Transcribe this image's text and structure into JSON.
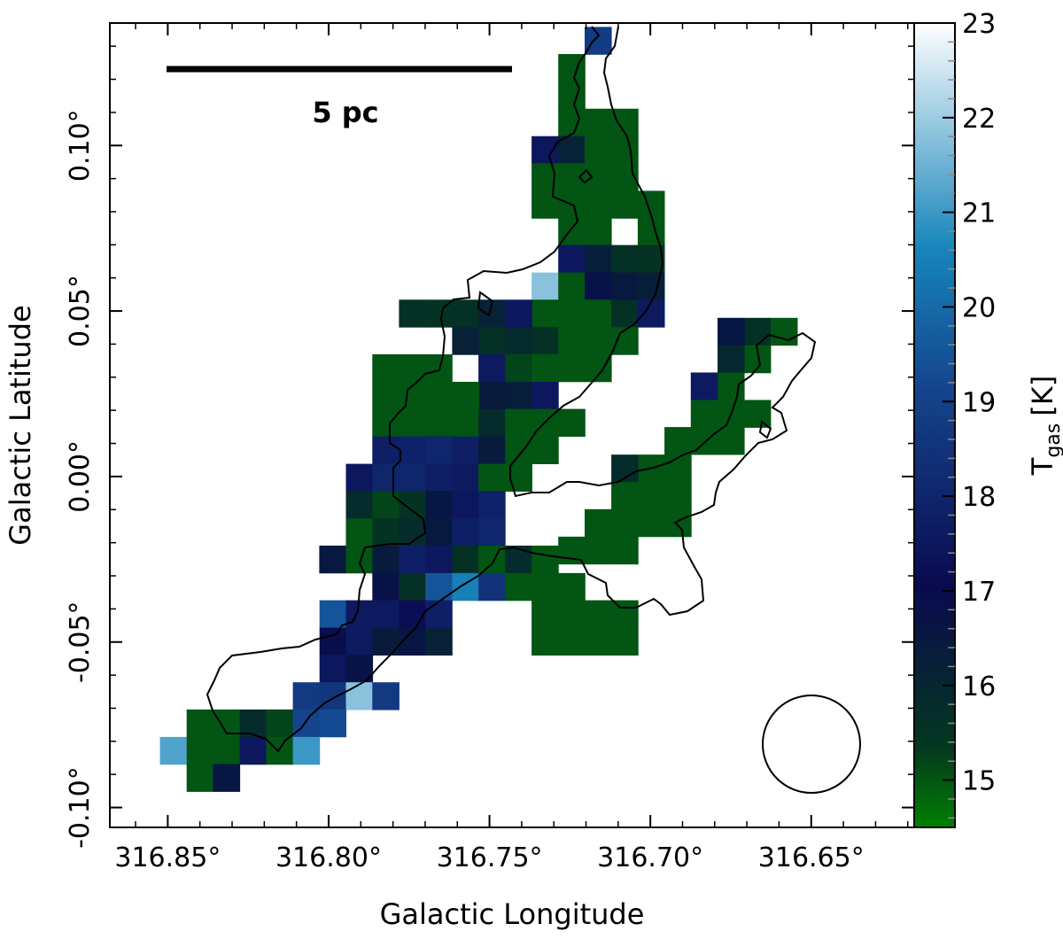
{
  "chart_data": {
    "type": "heatmap",
    "title": "",
    "xlabel": "Galactic Longitude",
    "ylabel": "Galactic Latitude",
    "xlim": [
      316.868,
      316.618
    ],
    "ylim": [
      -0.106,
      0.137
    ],
    "x_ticks": [
      {
        "value": 316.85,
        "label": "316.85°"
      },
      {
        "value": 316.8,
        "label": "316.80°"
      },
      {
        "value": 316.75,
        "label": "316.75°"
      },
      {
        "value": 316.7,
        "label": "316.70°"
      },
      {
        "value": 316.65,
        "label": "316.65°"
      }
    ],
    "y_ticks": [
      {
        "value": 0.1,
        "label": "0.10°"
      },
      {
        "value": 0.05,
        "label": "0.05°"
      },
      {
        "value": 0.0,
        "label": "0.00°"
      },
      {
        "value": -0.05,
        "label": "-0.05°"
      },
      {
        "value": -0.1,
        "label": "-0.10°"
      }
    ],
    "grid": false,
    "pixel_size_deg": 0.00825,
    "cmap_colors": [
      "#008000",
      "#04371f",
      "#0a0a50",
      "#15468e",
      "#1685bb",
      "#ffffff"
    ],
    "cells": [
      [
        316.7163,
        0.1317,
        18.8
      ],
      [
        316.7245,
        0.1235,
        15
      ],
      [
        316.7245,
        0.1152,
        15
      ],
      [
        316.7245,
        0.107,
        15
      ],
      [
        316.7163,
        0.107,
        15
      ],
      [
        316.708,
        0.107,
        15
      ],
      [
        316.7328,
        0.0987,
        17.5
      ],
      [
        316.7245,
        0.0987,
        16.2
      ],
      [
        316.708,
        0.0987,
        15
      ],
      [
        316.7163,
        0.0987,
        15
      ],
      [
        316.7328,
        0.0905,
        15
      ],
      [
        316.7245,
        0.0905,
        15
      ],
      [
        316.7163,
        0.0905,
        15
      ],
      [
        316.708,
        0.0905,
        15
      ],
      [
        316.7328,
        0.0822,
        15
      ],
      [
        316.7245,
        0.0822,
        15
      ],
      [
        316.7163,
        0.0822,
        15
      ],
      [
        316.708,
        0.0822,
        15
      ],
      [
        316.6998,
        0.0822,
        15
      ],
      [
        316.7245,
        0.074,
        15
      ],
      [
        316.7163,
        0.074,
        15
      ],
      [
        316.6998,
        0.074,
        15
      ],
      [
        316.7245,
        0.0658,
        17.5
      ],
      [
        316.7163,
        0.0658,
        16.3
      ],
      [
        316.708,
        0.0658,
        15.6
      ],
      [
        316.6998,
        0.0658,
        15.5
      ],
      [
        316.7328,
        0.0575,
        21.8
      ],
      [
        316.7245,
        0.0575,
        15
      ],
      [
        316.7163,
        0.0575,
        16.8
      ],
      [
        316.708,
        0.0575,
        16.5
      ],
      [
        316.6998,
        0.0575,
        16.3
      ],
      [
        316.7328,
        0.0493,
        15
      ],
      [
        316.7245,
        0.0493,
        15
      ],
      [
        316.7163,
        0.0493,
        15
      ],
      [
        316.708,
        0.0493,
        15.6
      ],
      [
        316.6998,
        0.0493,
        17.6
      ],
      [
        316.774,
        0.0493,
        15.6
      ],
      [
        316.7658,
        0.0493,
        15.5
      ],
      [
        316.7575,
        0.0493,
        15.6
      ],
      [
        316.7493,
        0.0493,
        16.2
      ],
      [
        316.741,
        0.0493,
        17.5
      ],
      [
        316.741,
        0.041,
        15.8
      ],
      [
        316.7493,
        0.041,
        15.6
      ],
      [
        316.7575,
        0.041,
        16.2
      ],
      [
        316.7328,
        0.041,
        15.6
      ],
      [
        316.7245,
        0.041,
        15
      ],
      [
        316.7163,
        0.041,
        15
      ],
      [
        316.708,
        0.041,
        15
      ],
      [
        316.7493,
        0.0328,
        17.6
      ],
      [
        316.741,
        0.0328,
        15.2
      ],
      [
        316.7328,
        0.0328,
        15
      ],
      [
        316.7245,
        0.0328,
        15
      ],
      [
        316.7163,
        0.0328,
        15
      ],
      [
        316.7823,
        0.0328,
        15
      ],
      [
        316.774,
        0.0328,
        15
      ],
      [
        316.7658,
        0.0328,
        15
      ],
      [
        316.7493,
        0.0245,
        16.4
      ],
      [
        316.741,
        0.0245,
        16.3
      ],
      [
        316.7328,
        0.0245,
        17.5
      ],
      [
        316.7823,
        0.0245,
        15
      ],
      [
        316.774,
        0.0245,
        15
      ],
      [
        316.7658,
        0.0245,
        15
      ],
      [
        316.7575,
        0.0245,
        15
      ],
      [
        316.7823,
        0.0163,
        15
      ],
      [
        316.774,
        0.0163,
        15
      ],
      [
        316.7658,
        0.0163,
        15
      ],
      [
        316.7575,
        0.0163,
        15
      ],
      [
        316.7493,
        0.0163,
        15.8
      ],
      [
        316.741,
        0.0163,
        15
      ],
      [
        316.7328,
        0.0163,
        15
      ],
      [
        316.7245,
        0.0163,
        15
      ],
      [
        316.7658,
        0.008,
        18
      ],
      [
        316.7575,
        0.008,
        17.8
      ],
      [
        316.7493,
        0.008,
        16.4
      ],
      [
        316.741,
        0.008,
        15
      ],
      [
        316.7328,
        0.008,
        15
      ],
      [
        316.774,
        0.008,
        17.9
      ],
      [
        316.7823,
        0.008,
        17.8
      ],
      [
        316.7905,
        -0.0003,
        17.5
      ],
      [
        316.7823,
        -0.0003,
        18
      ],
      [
        316.774,
        -0.0003,
        18
      ],
      [
        316.7658,
        -0.0003,
        17.8
      ],
      [
        316.7575,
        -0.0003,
        17.6
      ],
      [
        316.7493,
        -0.0003,
        15
      ],
      [
        316.741,
        -0.0003,
        15
      ],
      [
        316.7905,
        -0.0085,
        15.8
      ],
      [
        316.7823,
        -0.0085,
        15.2
      ],
      [
        316.774,
        -0.0085,
        15.5
      ],
      [
        316.7658,
        -0.0085,
        16.6
      ],
      [
        316.7575,
        -0.0085,
        17.5
      ],
      [
        316.7493,
        -0.0085,
        17.9
      ],
      [
        316.7905,
        -0.0168,
        15
      ],
      [
        316.7823,
        -0.0168,
        15.5
      ],
      [
        316.774,
        -0.0168,
        15.8
      ],
      [
        316.7658,
        -0.0168,
        16.5
      ],
      [
        316.7575,
        -0.0168,
        17.8
      ],
      [
        316.7493,
        -0.0168,
        18
      ],
      [
        316.7988,
        -0.025,
        16.5
      ],
      [
        316.7905,
        -0.025,
        15
      ],
      [
        316.7823,
        -0.025,
        16.4
      ],
      [
        316.774,
        -0.025,
        17.8
      ],
      [
        316.7658,
        -0.025,
        17.5
      ],
      [
        316.7575,
        -0.025,
        15.6
      ],
      [
        316.7493,
        -0.025,
        15
      ],
      [
        316.741,
        -0.025,
        15.8
      ],
      [
        316.7328,
        -0.025,
        15
      ],
      [
        316.7823,
        -0.0333,
        16.8
      ],
      [
        316.774,
        -0.0333,
        15.6
      ],
      [
        316.7658,
        -0.0333,
        19.5
      ],
      [
        316.7575,
        -0.0333,
        20.5
      ],
      [
        316.7493,
        -0.0333,
        18.5
      ],
      [
        316.741,
        -0.0333,
        15
      ],
      [
        316.7328,
        -0.0333,
        15
      ],
      [
        316.7245,
        -0.0333,
        15
      ],
      [
        316.7987,
        -0.0415,
        19.5
      ],
      [
        316.7905,
        -0.0415,
        17.6
      ],
      [
        316.7823,
        -0.0415,
        17.6
      ],
      [
        316.774,
        -0.0415,
        17.2
      ],
      [
        316.7658,
        -0.0415,
        17.8
      ],
      [
        316.7328,
        -0.0415,
        15
      ],
      [
        316.7245,
        -0.0415,
        15
      ],
      [
        316.7163,
        -0.0415,
        15
      ],
      [
        316.708,
        -0.0415,
        15
      ],
      [
        316.7987,
        -0.0498,
        16.9
      ],
      [
        316.7905,
        -0.0498,
        17.6
      ],
      [
        316.7823,
        -0.0498,
        16.4
      ],
      [
        316.774,
        -0.0498,
        16.6
      ],
      [
        316.7658,
        -0.0498,
        16.2
      ],
      [
        316.7328,
        -0.0498,
        15
      ],
      [
        316.7245,
        -0.0498,
        15
      ],
      [
        316.7163,
        -0.0498,
        15
      ],
      [
        316.708,
        -0.0498,
        15
      ],
      [
        316.7987,
        -0.058,
        17.5
      ],
      [
        316.7905,
        -0.058,
        16.7
      ],
      [
        316.7987,
        -0.0663,
        18.6
      ],
      [
        316.7905,
        -0.0663,
        21.8
      ],
      [
        316.7823,
        -0.0663,
        18.7
      ],
      [
        316.807,
        -0.0663,
        18.7
      ],
      [
        316.84,
        -0.0745,
        15
      ],
      [
        316.8318,
        -0.0745,
        15
      ],
      [
        316.8235,
        -0.0745,
        15.8
      ],
      [
        316.8153,
        -0.0745,
        15.2
      ],
      [
        316.807,
        -0.0745,
        19.1
      ],
      [
        316.7988,
        -0.0745,
        19.3
      ],
      [
        316.8483,
        -0.0828,
        21.2
      ],
      [
        316.84,
        -0.0828,
        15
      ],
      [
        316.8318,
        -0.0828,
        15
      ],
      [
        316.8235,
        -0.0828,
        17.5
      ],
      [
        316.8153,
        -0.0828,
        15
      ],
      [
        316.807,
        -0.0828,
        21
      ],
      [
        316.84,
        -0.091,
        15
      ],
      [
        316.8318,
        -0.091,
        16.6
      ],
      [
        316.6668,
        0.0438,
        15.6
      ],
      [
        316.675,
        0.0438,
        16.6
      ],
      [
        316.6585,
        0.0438,
        15
      ],
      [
        316.6668,
        0.0355,
        15
      ],
      [
        316.675,
        0.0355,
        15.9
      ],
      [
        316.675,
        0.0273,
        15
      ],
      [
        316.6833,
        0.0273,
        17.6
      ],
      [
        316.6833,
        0.019,
        15
      ],
      [
        316.675,
        0.019,
        15
      ],
      [
        316.6668,
        0.019,
        15
      ],
      [
        316.6915,
        0.0108,
        15
      ],
      [
        316.6833,
        0.0108,
        15
      ],
      [
        316.675,
        0.0108,
        15
      ],
      [
        316.6998,
        0.0025,
        15
      ],
      [
        316.6915,
        0.0025,
        15
      ],
      [
        316.708,
        0.0025,
        15.8
      ],
      [
        316.708,
        -0.0058,
        15
      ],
      [
        316.6998,
        -0.0058,
        15
      ],
      [
        316.6915,
        -0.0058,
        15
      ],
      [
        316.7163,
        -0.014,
        15
      ],
      [
        316.708,
        -0.014,
        15
      ],
      [
        316.6998,
        -0.014,
        15
      ],
      [
        316.6915,
        -0.014,
        15
      ],
      [
        316.7245,
        -0.0223,
        15
      ],
      [
        316.7163,
        -0.0223,
        15
      ],
      [
        316.708,
        -0.0223,
        15
      ]
    ]
  },
  "colorbar": {
    "label": "T",
    "label_subscript": "gas",
    "label_unit": "[K]",
    "vmin": 14.5,
    "vmax": 23,
    "ticks": [
      15,
      16,
      17,
      18,
      19,
      20,
      21,
      22,
      23
    ],
    "tick_labels": [
      "15",
      "16",
      "17",
      "18",
      "19",
      "20",
      "21",
      "22",
      "23"
    ]
  },
  "scalebar": {
    "label": "5 pc"
  },
  "beam": {
    "shape": "circle"
  }
}
